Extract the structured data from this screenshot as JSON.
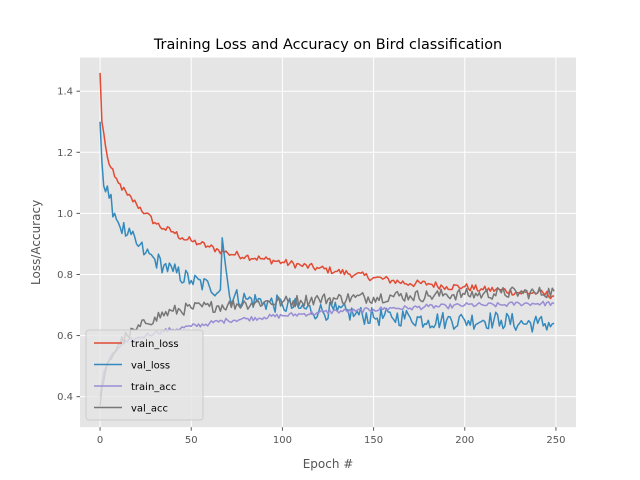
{
  "chart_data": {
    "type": "line",
    "title": "Training Loss and Accuracy on Bird classification",
    "xlabel": "Epoch #",
    "ylabel": "Loss/Accuracy",
    "xlim": [
      -11,
      261
    ],
    "ylim": [
      0.3,
      1.51
    ],
    "xticks": [
      0,
      50,
      100,
      150,
      200,
      250
    ],
    "yticks": [
      0.4,
      0.6,
      0.8,
      1.0,
      1.2,
      1.4
    ],
    "ytick_labels": [
      "0.4",
      "0.6",
      "0.8",
      "1.0",
      "1.2",
      "1.4"
    ],
    "grid": true,
    "legend_placement": "lower-left",
    "x_range": [
      0,
      249
    ],
    "series": [
      {
        "name": "train_loss",
        "color": "#E24A33",
        "points": [
          [
            0,
            1.46
          ],
          [
            1,
            1.3
          ],
          [
            3,
            1.22
          ],
          [
            5,
            1.16
          ],
          [
            8,
            1.12
          ],
          [
            10,
            1.1
          ],
          [
            15,
            1.06
          ],
          [
            20,
            1.03
          ],
          [
            25,
            1.0
          ],
          [
            30,
            0.97
          ],
          [
            35,
            0.95
          ],
          [
            40,
            0.94
          ],
          [
            45,
            0.92
          ],
          [
            50,
            0.91
          ],
          [
            55,
            0.9
          ],
          [
            60,
            0.89
          ],
          [
            65,
            0.88
          ],
          [
            70,
            0.87
          ],
          [
            80,
            0.86
          ],
          [
            90,
            0.85
          ],
          [
            100,
            0.84
          ],
          [
            110,
            0.83
          ],
          [
            120,
            0.82
          ],
          [
            130,
            0.81
          ],
          [
            140,
            0.8
          ],
          [
            150,
            0.79
          ],
          [
            160,
            0.78
          ],
          [
            170,
            0.77
          ],
          [
            180,
            0.77
          ],
          [
            190,
            0.76
          ],
          [
            200,
            0.76
          ],
          [
            210,
            0.75
          ],
          [
            220,
            0.75
          ],
          [
            230,
            0.74
          ],
          [
            240,
            0.74
          ],
          [
            249,
            0.73
          ]
        ],
        "noise": 0.012
      },
      {
        "name": "val_loss",
        "color": "#348ABD",
        "points": [
          [
            0,
            1.3
          ],
          [
            1,
            1.17
          ],
          [
            2,
            1.09
          ],
          [
            5,
            1.05
          ],
          [
            8,
            1.0
          ],
          [
            10,
            0.97
          ],
          [
            15,
            0.93
          ],
          [
            20,
            0.9
          ],
          [
            25,
            0.87
          ],
          [
            30,
            0.85
          ],
          [
            35,
            0.83
          ],
          [
            40,
            0.81
          ],
          [
            50,
            0.78
          ],
          [
            60,
            0.76
          ],
          [
            66,
            0.75
          ],
          [
            67,
            0.92
          ],
          [
            69,
            0.82
          ],
          [
            71,
            0.73
          ],
          [
            80,
            0.72
          ],
          [
            90,
            0.71
          ],
          [
            100,
            0.7
          ],
          [
            110,
            0.69
          ],
          [
            120,
            0.68
          ],
          [
            130,
            0.68
          ],
          [
            140,
            0.67
          ],
          [
            150,
            0.66
          ],
          [
            160,
            0.66
          ],
          [
            170,
            0.66
          ],
          [
            180,
            0.65
          ],
          [
            190,
            0.65
          ],
          [
            200,
            0.65
          ],
          [
            210,
            0.65
          ],
          [
            220,
            0.65
          ],
          [
            230,
            0.64
          ],
          [
            240,
            0.64
          ],
          [
            249,
            0.64
          ]
        ],
        "noise": 0.03
      },
      {
        "name": "train_acc",
        "color": "#988ED5",
        "points": [
          [
            0,
            0.4
          ],
          [
            2,
            0.48
          ],
          [
            5,
            0.52
          ],
          [
            10,
            0.56
          ],
          [
            15,
            0.58
          ],
          [
            20,
            0.59
          ],
          [
            25,
            0.6
          ],
          [
            30,
            0.61
          ],
          [
            40,
            0.62
          ],
          [
            50,
            0.63
          ],
          [
            60,
            0.64
          ],
          [
            70,
            0.65
          ],
          [
            80,
            0.655
          ],
          [
            90,
            0.66
          ],
          [
            100,
            0.665
          ],
          [
            110,
            0.67
          ],
          [
            120,
            0.675
          ],
          [
            130,
            0.68
          ],
          [
            140,
            0.68
          ],
          [
            150,
            0.685
          ],
          [
            160,
            0.69
          ],
          [
            170,
            0.69
          ],
          [
            180,
            0.695
          ],
          [
            190,
            0.695
          ],
          [
            200,
            0.7
          ],
          [
            210,
            0.7
          ],
          [
            220,
            0.7
          ],
          [
            230,
            0.705
          ],
          [
            240,
            0.705
          ],
          [
            249,
            0.705
          ]
        ],
        "noise": 0.008
      },
      {
        "name": "val_acc",
        "color": "#777777",
        "points": [
          [
            0,
            0.37
          ],
          [
            2,
            0.45
          ],
          [
            5,
            0.52
          ],
          [
            10,
            0.57
          ],
          [
            15,
            0.6
          ],
          [
            20,
            0.62
          ],
          [
            25,
            0.64
          ],
          [
            30,
            0.66
          ],
          [
            40,
            0.68
          ],
          [
            50,
            0.69
          ],
          [
            60,
            0.695
          ],
          [
            70,
            0.7
          ],
          [
            80,
            0.705
          ],
          [
            90,
            0.71
          ],
          [
            100,
            0.71
          ],
          [
            110,
            0.715
          ],
          [
            120,
            0.72
          ],
          [
            130,
            0.72
          ],
          [
            140,
            0.725
          ],
          [
            150,
            0.725
          ],
          [
            160,
            0.73
          ],
          [
            170,
            0.73
          ],
          [
            180,
            0.73
          ],
          [
            190,
            0.735
          ],
          [
            200,
            0.735
          ],
          [
            210,
            0.735
          ],
          [
            220,
            0.74
          ],
          [
            230,
            0.74
          ],
          [
            240,
            0.74
          ],
          [
            249,
            0.745
          ]
        ],
        "noise": 0.02
      }
    ]
  }
}
